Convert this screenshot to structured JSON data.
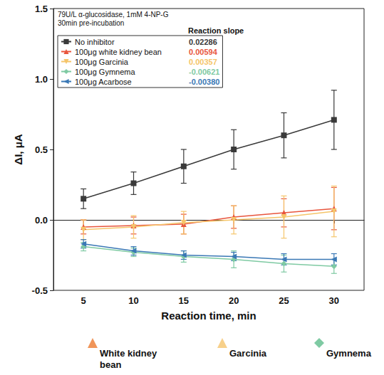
{
  "chart_data": {
    "type": "line",
    "annotations": [
      "79U/L α-glucosidase, 1mM 4-NP-G",
      "30min pre-incubation"
    ],
    "legend_title": "Reaction slope",
    "x_label": "Reaction time, min",
    "y_label": "ΔI, μA",
    "x": [
      5,
      10,
      15,
      20,
      25,
      30
    ],
    "xlim": [
      2,
      33
    ],
    "xticks": [
      5,
      10,
      15,
      20,
      25,
      30
    ],
    "ylim": [
      -0.5,
      1.5
    ],
    "yticks": [
      -0.5,
      {
        "value": 0,
        "label": "0.0"
      },
      0.5,
      {
        "value": 1,
        "label": "1.0"
      },
      1.5
    ],
    "legend": "upper left",
    "grid": false,
    "series": [
      {
        "name": "No inhibitor",
        "color": "#3a3a3a",
        "marker": "square",
        "values": [
          0.15,
          0.26,
          0.38,
          0.5,
          0.6,
          0.71
        ],
        "errors": [
          0.07,
          0.08,
          0.12,
          0.14,
          0.16,
          0.21
        ],
        "slope": 0.02286,
        "slope_label": "0.02286"
      },
      {
        "name": "100μg white kidney bean",
        "color": "#e8553d",
        "marker": "triangle",
        "values": [
          -0.05,
          -0.04,
          -0.03,
          0.02,
          0.05,
          0.08
        ],
        "errors": [
          0.05,
          0.06,
          0.07,
          0.08,
          0.1,
          0.15
        ],
        "slope": 0.00594,
        "slope_label": "0.00594"
      },
      {
        "name": "100μg Garcinia",
        "color": "#f5c56a",
        "marker": "triangle_down",
        "values": [
          -0.07,
          -0.05,
          -0.02,
          0.0,
          0.02,
          0.06
        ],
        "errors": [
          0.07,
          0.08,
          0.08,
          0.1,
          0.15,
          0.18
        ],
        "slope": 0.00357,
        "slope_label": "0.00357"
      },
      {
        "name": "100μg Gymnema",
        "color": "#7fcaa3",
        "marker": "diamond",
        "values": [
          -0.19,
          -0.23,
          -0.26,
          -0.28,
          -0.31,
          -0.33
        ],
        "errors": [
          0.03,
          0.03,
          0.04,
          0.06,
          0.06,
          0.05
        ],
        "slope": -0.00621,
        "slope_label": "-0.00621"
      },
      {
        "name": "100μg Acarbose",
        "color": "#3a78b5",
        "marker": "triangle_left",
        "values": [
          -0.17,
          -0.22,
          -0.25,
          -0.26,
          -0.28,
          -0.28
        ],
        "errors": [
          0.03,
          0.03,
          0.03,
          0.03,
          0.04,
          0.04
        ],
        "slope": -0.0038,
        "slope_label": "-0.00380"
      }
    ],
    "image_labels": [
      {
        "text": "White kidney bean",
        "color": "#f0955a",
        "marker": "triangle"
      },
      {
        "text": "Garcinia",
        "color": "#f7d08a",
        "marker": "triangle"
      },
      {
        "text": "Gymnema",
        "color": "#7fcaa3",
        "marker": "diamond"
      }
    ]
  }
}
